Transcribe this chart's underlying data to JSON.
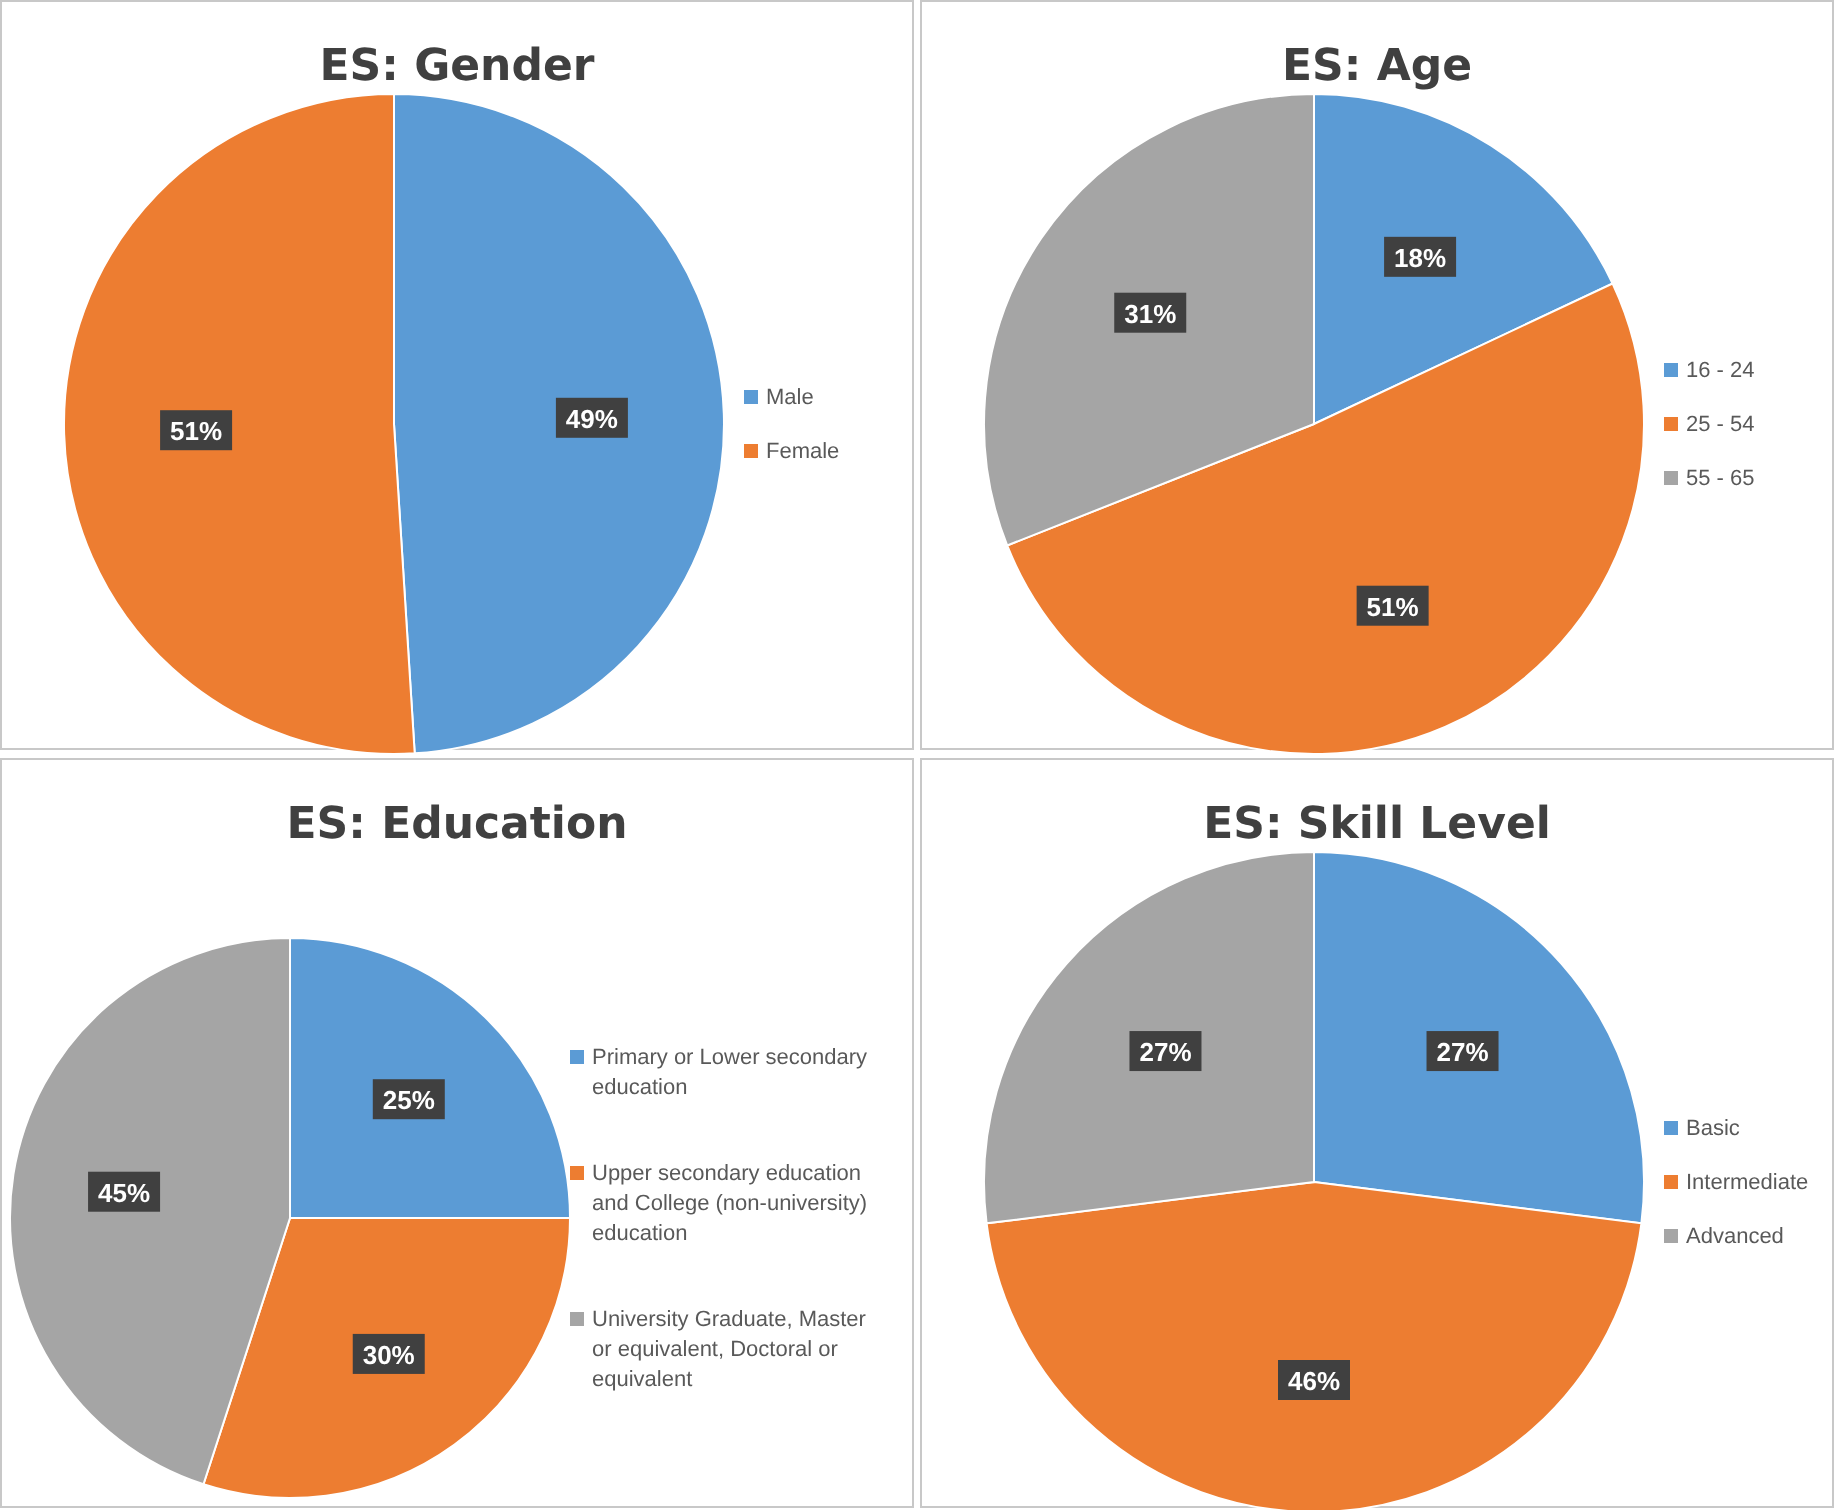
{
  "chart_data": [
    {
      "type": "pie",
      "title": "ES: Gender",
      "categories": [
        "Male",
        "Female"
      ],
      "values": [
        49,
        51
      ],
      "colors": [
        "#5b9bd5",
        "#ed7d31"
      ],
      "value_labels": [
        "49%",
        "51%"
      ],
      "legend": "right"
    },
    {
      "type": "pie",
      "title": "ES: Age",
      "categories": [
        "16 - 24",
        "25 - 54",
        "55 - 65"
      ],
      "values": [
        18,
        51,
        31
      ],
      "colors": [
        "#5b9bd5",
        "#ed7d31",
        "#a5a5a5"
      ],
      "value_labels": [
        "18%",
        "51%",
        "31%"
      ],
      "legend": "right"
    },
    {
      "type": "pie",
      "title": "ES: Education",
      "categories": [
        "Primary or Lower secondary education",
        "Upper secondary education and College (non-university) education",
        "University Graduate, Master or equivalent, Doctoral or equivalent"
      ],
      "values": [
        25,
        30,
        45
      ],
      "colors": [
        "#5b9bd5",
        "#ed7d31",
        "#a5a5a5"
      ],
      "value_labels": [
        "25%",
        "30%",
        "45%"
      ],
      "legend": "right"
    },
    {
      "type": "pie",
      "title": "ES: Skill Level",
      "categories": [
        "Basic",
        "Intermediate",
        "Advanced"
      ],
      "values": [
        27,
        46,
        27
      ],
      "colors": [
        "#5b9bd5",
        "#ed7d31",
        "#a5a5a5"
      ],
      "value_labels": [
        "27%",
        "46%",
        "27%"
      ],
      "legend": "right"
    }
  ]
}
